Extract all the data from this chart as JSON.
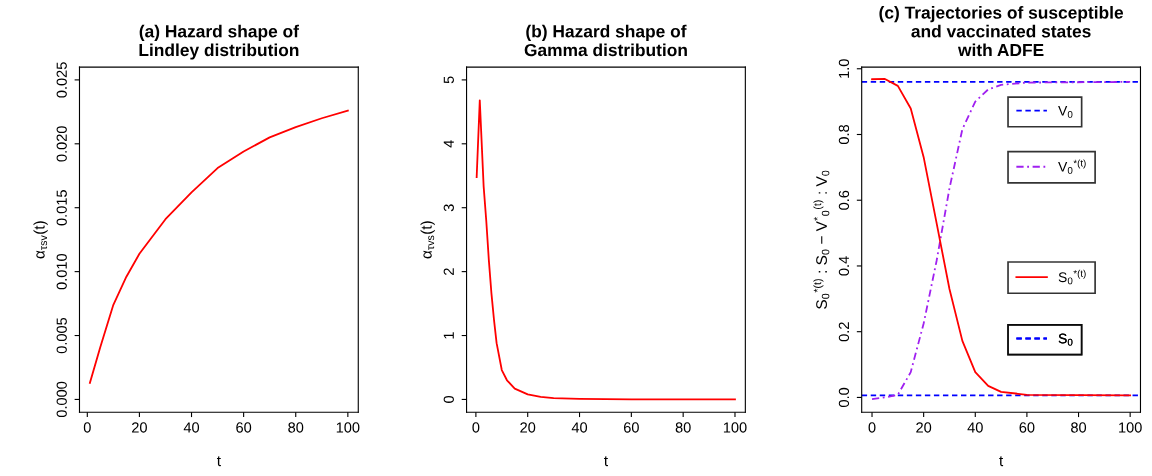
{
  "chart_data": [
    {
      "type": "line",
      "title": "(a) Hazard shape of\nLindley distribution",
      "xlabel": "t",
      "ylabel": "α$_{τsv}$(t)",
      "x": [
        1,
        5,
        10,
        15,
        20,
        30,
        40,
        50,
        60,
        70,
        80,
        90,
        100
      ],
      "series": [
        {
          "color": "#ff0000",
          "values": [
            0.0013,
            0.0041,
            0.0074,
            0.0096,
            0.0114,
            0.0141,
            0.0162,
            0.0181,
            0.0194,
            0.0205,
            0.0213,
            0.022,
            0.0226
          ]
        }
      ],
      "xlim": [
        -3,
        104
      ],
      "ylim": [
        -0.001,
        0.026
      ],
      "xticks": [
        0,
        20,
        40,
        60,
        80,
        100
      ],
      "yticks": [
        {
          "value": 0,
          "label": "0.000"
        },
        {
          "value": 0.005,
          "label": "0.005"
        },
        {
          "value": 0.01,
          "label": "0.010"
        },
        {
          "value": 0.015,
          "label": "0.015"
        },
        {
          "value": 0.02,
          "label": "0.020"
        },
        {
          "value": 0.025,
          "label": "0.025"
        }
      ],
      "grid": false,
      "legend": false
    },
    {
      "type": "line",
      "title": "(b) Hazard shape of\nGamma distribution",
      "xlabel": "t",
      "ylabel": "α$_{τvs}$(t)",
      "x": [
        0.3,
        1.5,
        3,
        4,
        5,
        6,
        7,
        8,
        10,
        12,
        15,
        20,
        25,
        30,
        40,
        60,
        100
      ],
      "series": [
        {
          "color": "#ff0000",
          "values": [
            3.48,
            4.68,
            3.33,
            2.8,
            2.18,
            1.66,
            1.24,
            0.88,
            0.46,
            0.3,
            0.17,
            0.08,
            0.04,
            0.02,
            0.01,
            0,
            0
          ]
        }
      ],
      "xlim": [
        -3.6,
        104
      ],
      "ylim": [
        -0.2,
        5.2
      ],
      "xticks": [
        0,
        20,
        40,
        60,
        80,
        100
      ],
      "yticks": [
        0,
        1,
        2,
        3,
        4,
        5
      ],
      "grid": false,
      "legend": false
    },
    {
      "type": "line",
      "title": "(c) Trajectories of susceptible\nand vaccinated states\nwith ADFE",
      "xlabel": "t",
      "ylabel": "S$_{0}$$^{*(t)}$ : S$_{0}$ − V$^{*}$$_{0}$$^{(t)}$ : V$_{0}$",
      "x": [
        0,
        5,
        10,
        15,
        20,
        25,
        30,
        35,
        40,
        45,
        50,
        60,
        100
      ],
      "series": [
        {
          "name": "V$_{0}$$^{*(t)}$",
          "color": "#a020f0",
          "line_style": "dashdot",
          "values": [
            -0.005,
            0.0,
            0.008,
            0.077,
            0.225,
            0.415,
            0.636,
            0.816,
            0.9,
            0.937,
            0.951,
            0.958,
            0.96
          ]
        },
        {
          "name": "S$_{0}$$^{*(t)}$",
          "color": "#ff0000",
          "line_style": "solid",
          "values": [
            0.968,
            0.969,
            0.948,
            0.879,
            0.731,
            0.531,
            0.33,
            0.172,
            0.077,
            0.035,
            0.017,
            0.008,
            0.006
          ]
        }
      ],
      "ref_lines": [
        {
          "axis": "y",
          "value": 0.96,
          "label": "V$_{0}$",
          "color": "#0000ff",
          "line_style": "dashed"
        },
        {
          "axis": "y",
          "value": 0.006,
          "label": "S$_{0}$",
          "color": "#0000ff",
          "line_style": "dashed"
        }
      ],
      "xlim": [
        -4,
        104
      ],
      "ylim": [
        -0.045,
        1.005
      ],
      "xticks": [
        0,
        20,
        40,
        60,
        80,
        100
      ],
      "yticks": [
        {
          "value": 0,
          "label": "0.0"
        },
        {
          "value": 0.2,
          "label": "0.2"
        },
        {
          "value": 0.4,
          "label": "0.4"
        },
        {
          "value": 0.6,
          "label": "0.6"
        },
        {
          "value": 0.8,
          "label": "0.8"
        },
        {
          "value": 1.0,
          "label": "1.0"
        }
      ],
      "grid": false,
      "legend": "right"
    }
  ]
}
